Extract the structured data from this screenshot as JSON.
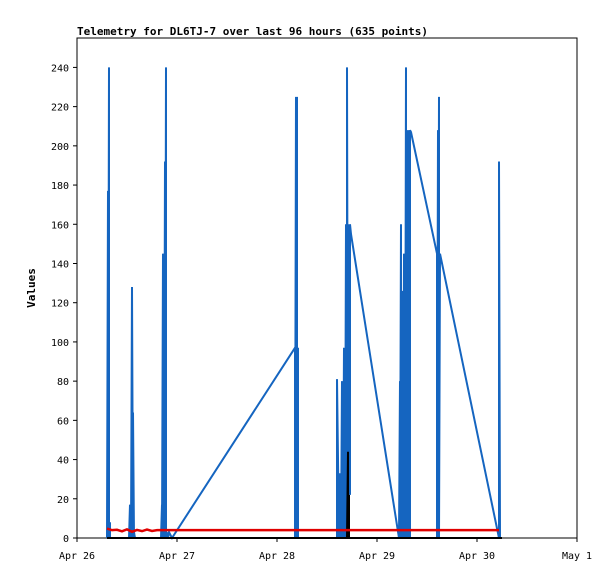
{
  "chart_data": {
    "type": "line",
    "title": "Telemetry for DL6TJ-7 over last 96 hours (635 points)",
    "ylabel": "Values",
    "xlabel": "",
    "ylim": [
      0,
      255
    ],
    "y_ticks": [
      0,
      20,
      40,
      60,
      80,
      100,
      120,
      140,
      160,
      180,
      200,
      220,
      240
    ],
    "x_ticks": [
      "Apr 26",
      "Apr 27",
      "Apr 28",
      "Apr 29",
      "Apr 30",
      "May 1"
    ],
    "x_unit": "days since Apr 26 00:00",
    "grid": false,
    "series": [
      {
        "color": "#1565c0",
        "x": [
          0.3,
          0.31,
          0.31,
          0.32,
          0.32,
          0.33,
          0.33,
          0.52,
          0.53,
          0.53,
          0.54,
          0.55,
          0.56,
          0.56,
          0.57,
          0.57,
          0.58,
          0.84,
          0.85,
          0.85,
          0.86,
          0.86,
          0.87,
          0.87,
          0.88,
          0.88,
          0.89,
          0.89,
          0.9,
          0.9,
          0.91,
          0.91,
          0.92,
          0.95,
          2.18,
          2.18,
          2.19,
          2.19,
          2.2,
          2.2,
          2.21,
          2.21,
          2.6,
          2.6,
          2.62,
          2.63,
          2.64,
          2.65,
          2.66,
          2.67,
          2.68,
          2.69,
          2.7,
          2.7,
          2.71,
          2.71,
          2.72,
          2.72,
          2.73,
          2.73,
          2.74,
          3.22,
          3.23,
          3.23,
          3.24,
          3.24,
          3.25,
          3.25,
          3.26,
          3.26,
          3.27,
          3.27,
          3.28,
          3.28,
          3.29,
          3.29,
          3.3,
          3.31,
          3.31,
          3.32,
          3.32,
          3.33,
          3.33,
          3.34,
          3.6,
          3.6,
          3.61,
          3.61,
          3.62,
          3.62,
          3.63,
          4.22,
          4.22,
          4.23
        ],
        "y": [
          0,
          177,
          0,
          240,
          0,
          8,
          0,
          0,
          17,
          0,
          0,
          128,
          0,
          64,
          0,
          3,
          0,
          0,
          17,
          0,
          145,
          0,
          145,
          0,
          192,
          0,
          240,
          0,
          3,
          0,
          2,
          0,
          3,
          0,
          97,
          0,
          225,
          0,
          225,
          0,
          97,
          0,
          0,
          81,
          0,
          33,
          0,
          80,
          0,
          97,
          0,
          160,
          0,
          240,
          0,
          130,
          44,
          160,
          22,
          160,
          155,
          0,
          80,
          0,
          160,
          0,
          90,
          0,
          126,
          0,
          145,
          0,
          145,
          0,
          240,
          0,
          145,
          0,
          208,
          0,
          145,
          0,
          208,
          207,
          145,
          0,
          208,
          0,
          225,
          0,
          145,
          0,
          192,
          0
        ]
      },
      {
        "color": "#000000",
        "x": [
          0.3,
          2.7,
          2.71,
          2.71,
          2.72,
          2.72,
          4.25
        ],
        "y": [
          0,
          0,
          44,
          0,
          22,
          0,
          0
        ]
      },
      {
        "color": "#e00000",
        "x": [
          0.3,
          0.35,
          0.4,
          0.45,
          0.5,
          0.55,
          0.6,
          0.65,
          0.7,
          0.75,
          0.8,
          0.85,
          0.9,
          1.0,
          2.2,
          2.6,
          3.2,
          3.6,
          4.22
        ],
        "y": [
          4.8,
          4.0,
          4.2,
          3.4,
          4.4,
          3.2,
          4.1,
          3.5,
          4.3,
          3.6,
          4.0,
          4.0,
          4.0,
          4.0,
          4.0,
          4.0,
          4.0,
          4.0,
          4.0
        ]
      }
    ]
  }
}
